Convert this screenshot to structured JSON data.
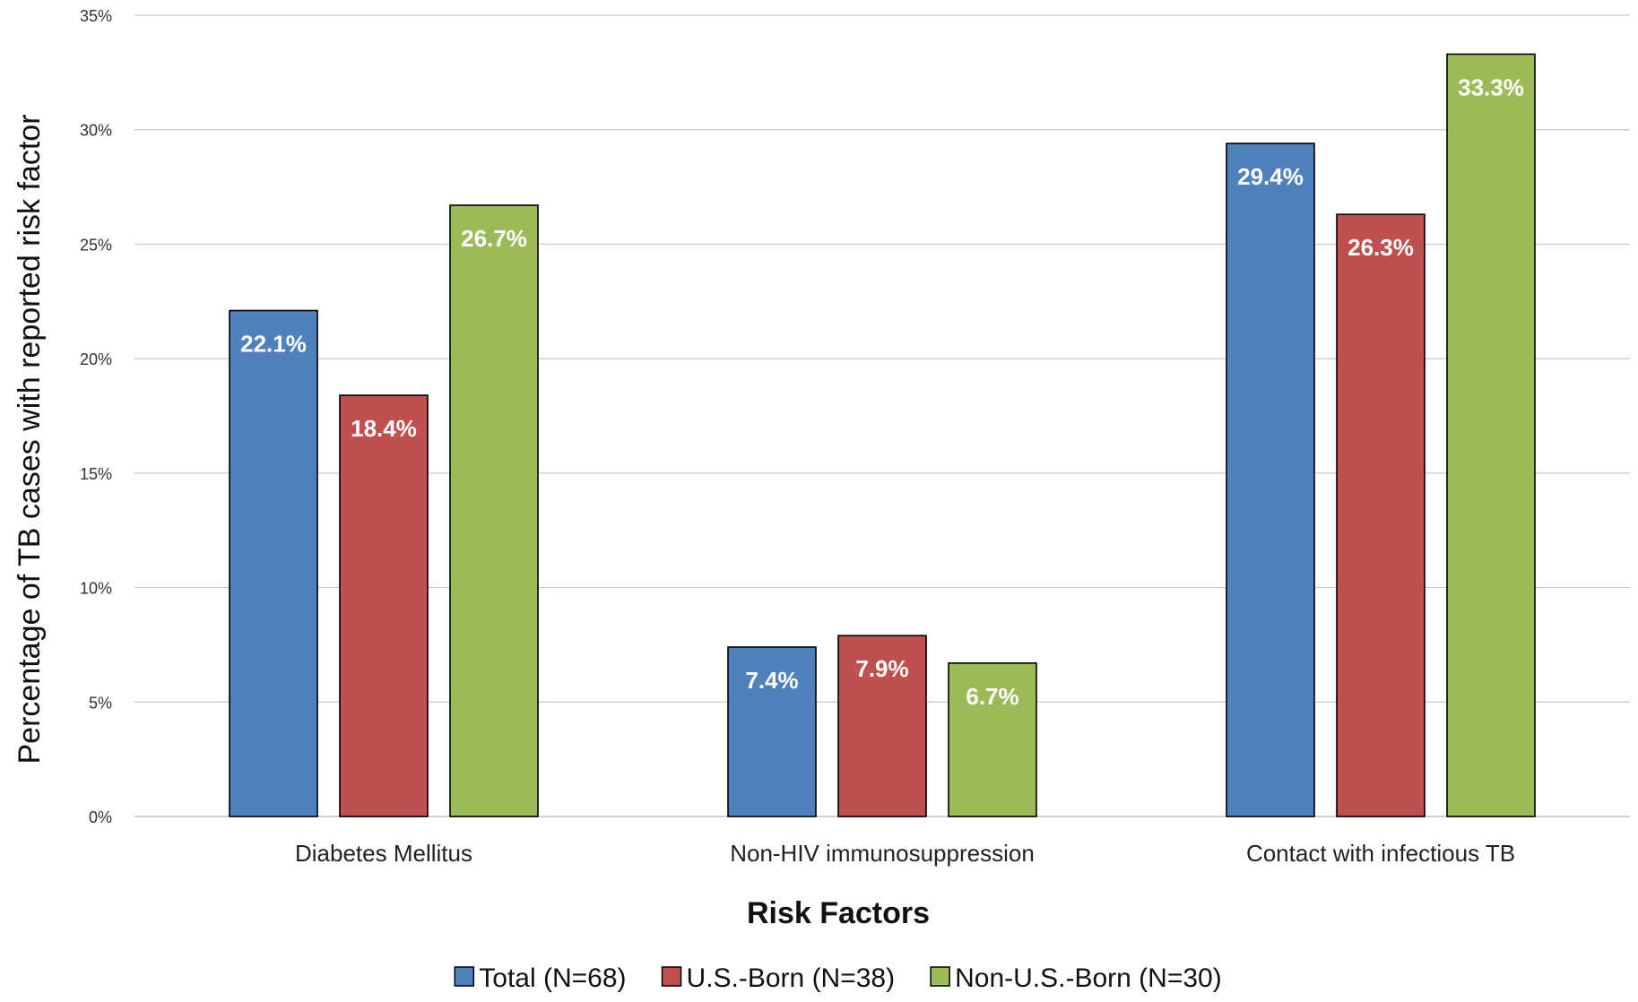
{
  "chart_data": {
    "type": "bar",
    "title": "",
    "xlabel": "Risk Factors",
    "ylabel": "Percentage of TB cases with reported risk factor",
    "categories": [
      "Diabetes Mellitus",
      "Non-HIV immunosuppression",
      "Contact with infectious TB"
    ],
    "series": [
      {
        "name": "Total (N=68)",
        "color": "#4f81bd",
        "values": [
          22.1,
          7.4,
          29.4
        ],
        "labels": [
          "22.1%",
          "7.4%",
          "29.4%"
        ]
      },
      {
        "name": "U.S.-Born (N=38)",
        "color": "#c0504d",
        "values": [
          18.4,
          7.9,
          26.3
        ],
        "labels": [
          "18.4%",
          "7.9%",
          "26.3%"
        ]
      },
      {
        "name": "Non-U.S.-Born (N=30)",
        "color": "#9bbb59",
        "values": [
          26.7,
          6.7,
          33.3
        ],
        "labels": [
          "26.7%",
          "6.7%",
          "33.3%"
        ]
      }
    ],
    "ylim": [
      0,
      35
    ],
    "yticks": [
      0,
      5,
      10,
      15,
      20,
      25,
      30,
      35
    ],
    "ytick_labels": [
      "0%",
      "5%",
      "10%",
      "15%",
      "20%",
      "25%",
      "30%",
      "35%"
    ],
    "grid": true,
    "legend": "bottom"
  }
}
